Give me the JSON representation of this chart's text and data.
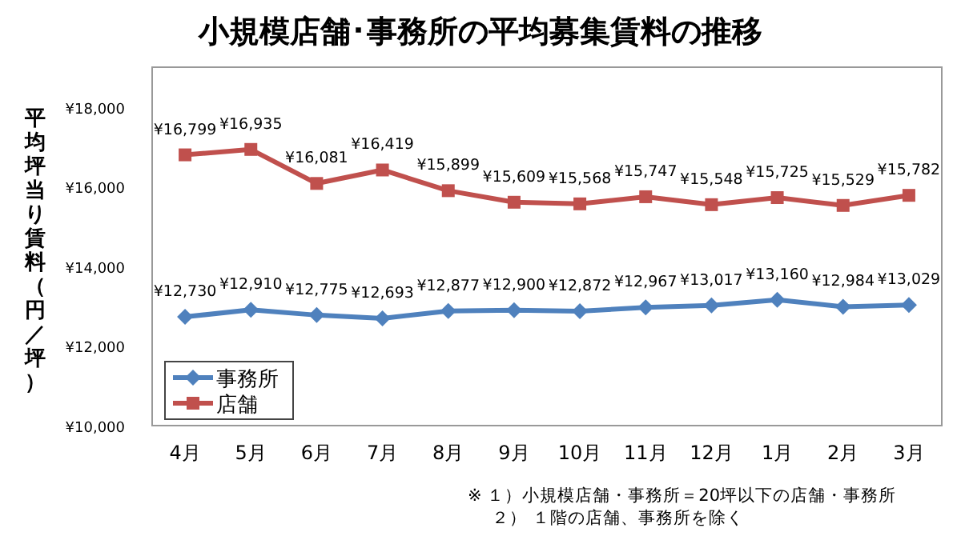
{
  "chart_data": {
    "type": "line",
    "title": "小規模店舗･事務所の平均募集賃料の推移",
    "ylabel": "平均坪当り賃料（円／坪）",
    "categories": [
      "4月",
      "5月",
      "6月",
      "7月",
      "8月",
      "9月",
      "10月",
      "11月",
      "12月",
      "1月",
      "2月",
      "3月"
    ],
    "series": [
      {
        "name": "事務所",
        "color": "#4f81bd",
        "marker": "diamond",
        "values": [
          12730,
          12910,
          12775,
          12693,
          12877,
          12900,
          12872,
          12967,
          13017,
          13160,
          12984,
          13029
        ],
        "value_labels": [
          "¥12,730",
          "¥12,910",
          "¥12,775",
          "¥12,693",
          "¥12,877",
          "¥12,900",
          "¥12,872",
          "¥12,967",
          "¥13,017",
          "¥13,160",
          "¥12,984",
          "¥13,029"
        ]
      },
      {
        "name": "店舗",
        "color": "#c0504d",
        "marker": "square",
        "values": [
          16799,
          16935,
          16081,
          16419,
          15899,
          15609,
          15568,
          15747,
          15548,
          15725,
          15529,
          15782
        ],
        "value_labels": [
          "¥16,799",
          "¥16,935",
          "¥16,081",
          "¥16,419",
          "¥15,899",
          "¥15,609",
          "¥15,568",
          "¥15,747",
          "¥15,548",
          "¥15,725",
          "¥15,529",
          "¥15,782"
        ]
      }
    ],
    "ylim": [
      10000,
      19000
    ],
    "yticks": [
      {
        "value": 10000,
        "label": "¥10,000"
      },
      {
        "value": 12000,
        "label": "¥12,000"
      },
      {
        "value": 14000,
        "label": "¥14,000"
      },
      {
        "value": 16000,
        "label": "¥16,000"
      },
      {
        "value": 18000,
        "label": "¥18,000"
      }
    ],
    "grid": false,
    "legend": "bottom left",
    "annotations": [
      "※ １）小規模店舗・事務所＝20坪以下の店舗・事務所",
      "２） １階の店舗、事務所を除く"
    ]
  }
}
